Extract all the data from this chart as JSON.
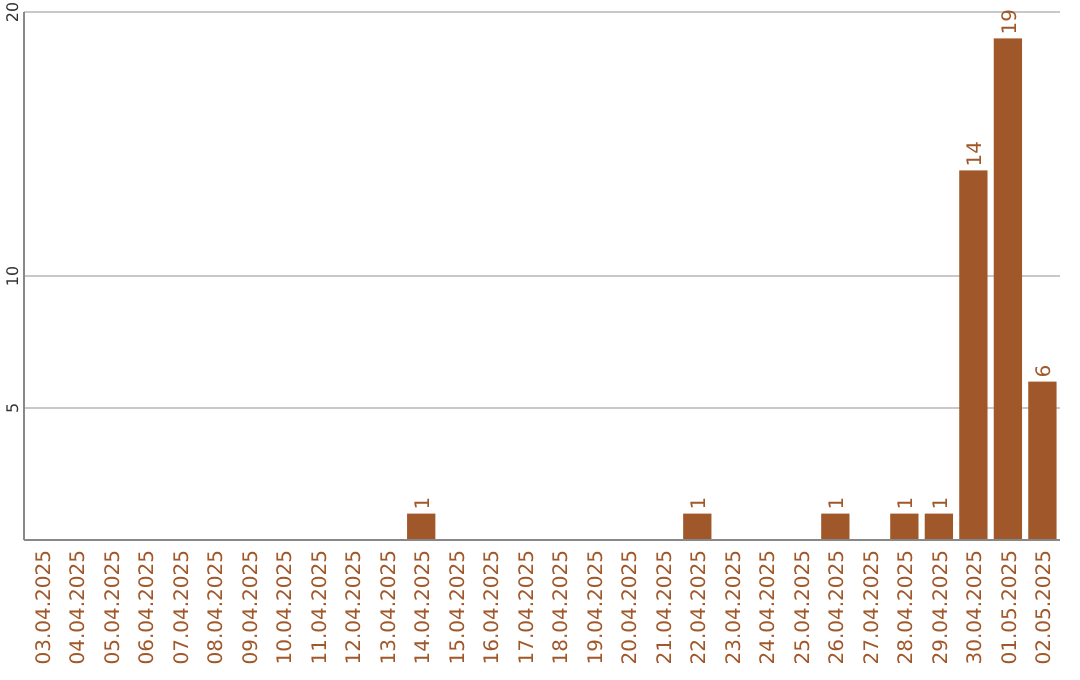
{
  "chart_data": {
    "type": "bar",
    "categories": [
      "03.04.2025",
      "04.04.2025",
      "05.04.2025",
      "06.04.2025",
      "07.04.2025",
      "08.04.2025",
      "09.04.2025",
      "10.04.2025",
      "11.04.2025",
      "12.04.2025",
      "13.04.2025",
      "14.04.2025",
      "15.04.2025",
      "16.04.2025",
      "17.04.2025",
      "18.04.2025",
      "19.04.2025",
      "20.04.2025",
      "21.04.2025",
      "22.04.2025",
      "23.04.2025",
      "24.04.2025",
      "25.04.2025",
      "26.04.2025",
      "27.04.2025",
      "28.04.2025",
      "29.04.2025",
      "30.04.2025",
      "01.05.2025",
      "02.05.2025"
    ],
    "values": [
      0,
      0,
      0,
      0,
      0,
      0,
      0,
      0,
      0,
      0,
      0,
      1,
      0,
      0,
      0,
      0,
      0,
      0,
      0,
      1,
      0,
      0,
      0,
      1,
      0,
      1,
      1,
      14,
      19,
      6
    ],
    "value_labels": [
      null,
      null,
      null,
      null,
      null,
      null,
      null,
      null,
      null,
      null,
      null,
      "1",
      null,
      null,
      null,
      null,
      null,
      null,
      null,
      "1",
      null,
      null,
      null,
      "1",
      null,
      "1",
      "1",
      "14",
      "19",
      "6"
    ],
    "color": "#a0582a",
    "ylim": [
      0,
      20
    ],
    "yticks": [
      5,
      10,
      20
    ],
    "grid": "y"
  }
}
